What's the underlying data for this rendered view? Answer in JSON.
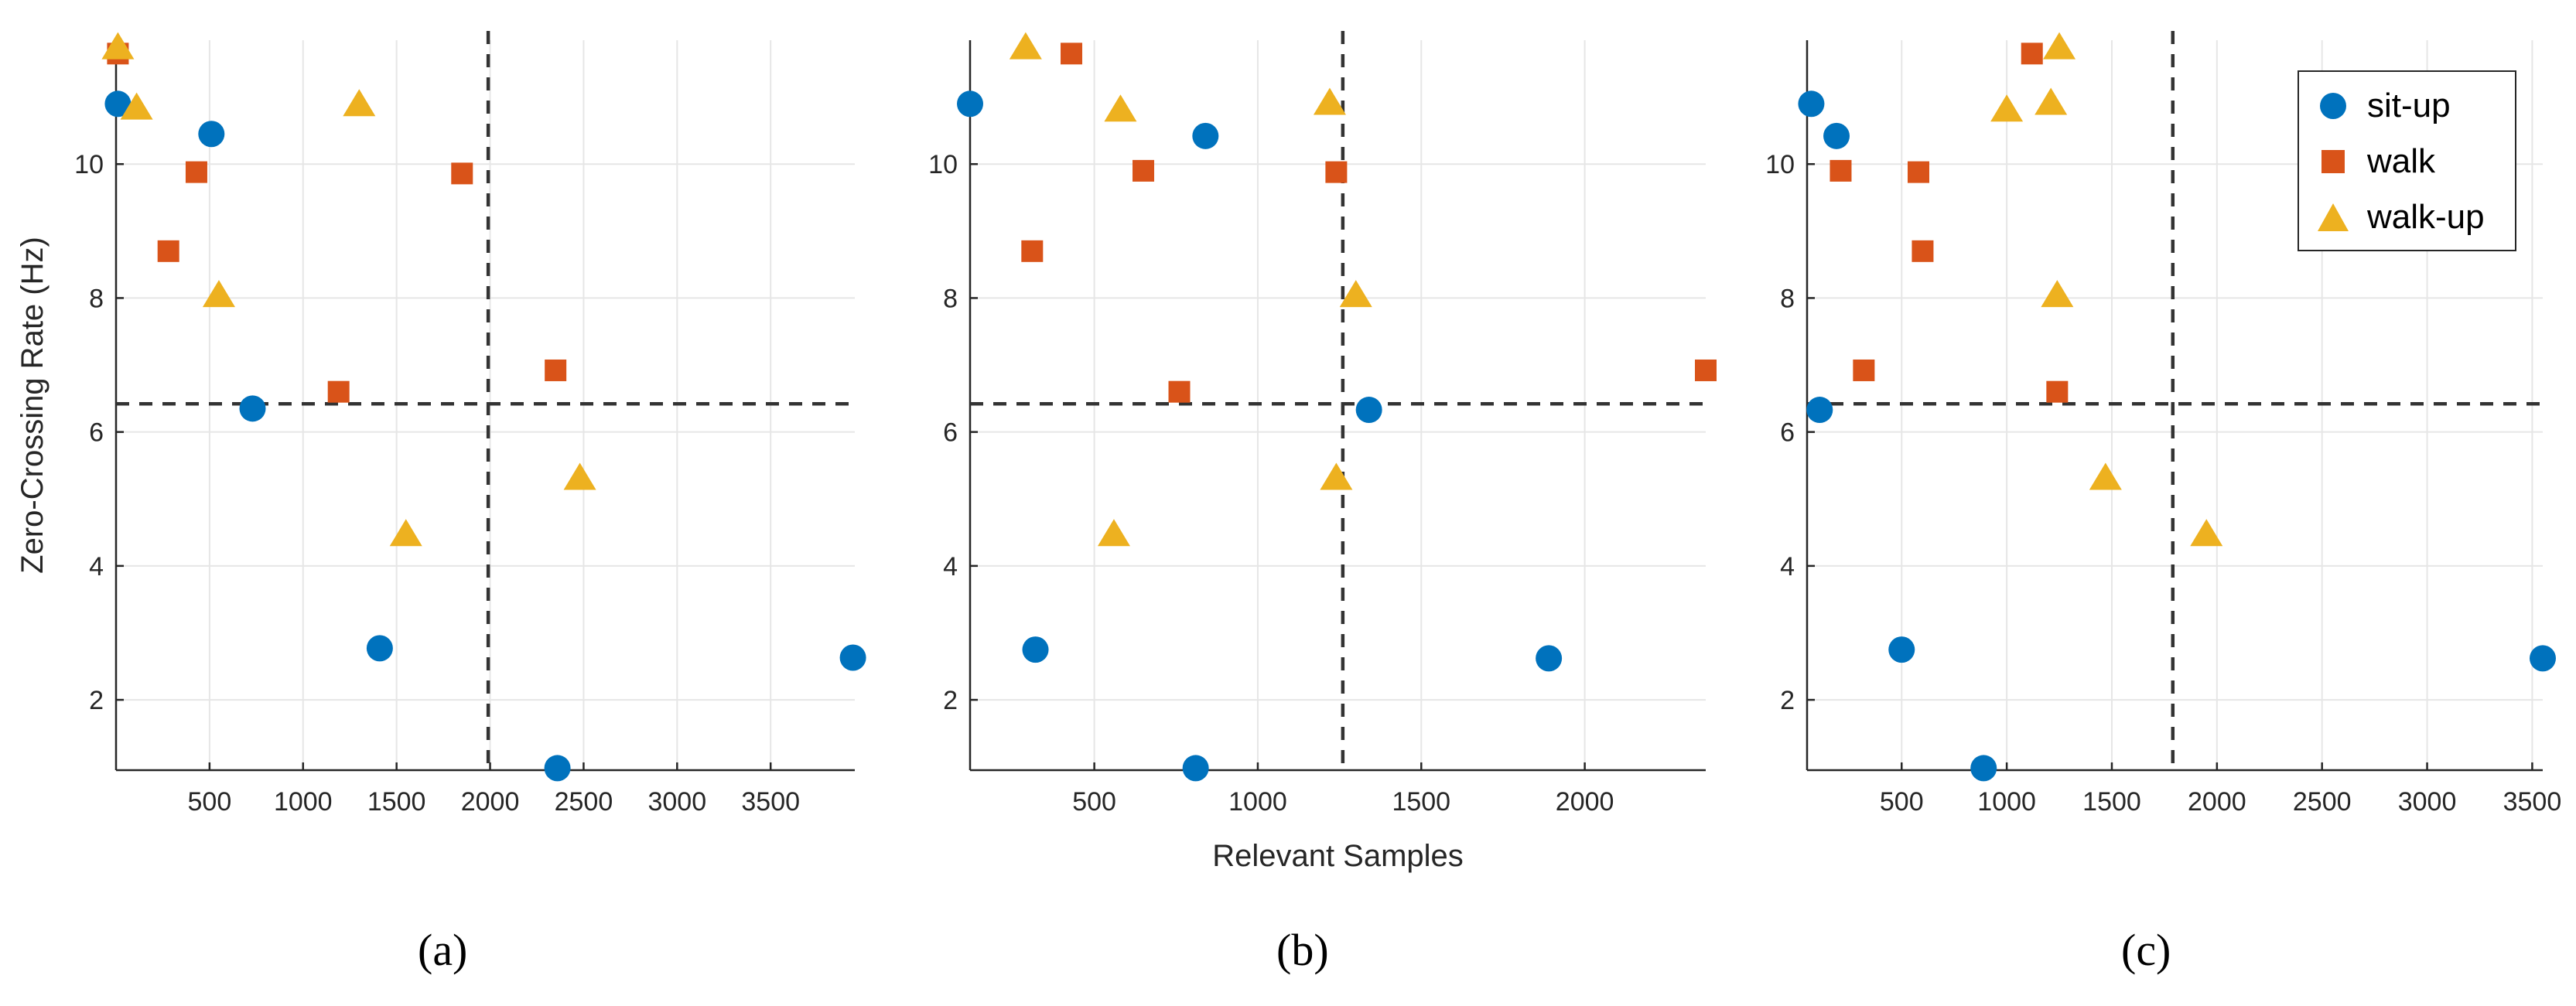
{
  "figure": {
    "legend": [
      {
        "name": "sit-up",
        "color": "#0072BD",
        "marker": "circle"
      },
      {
        "name": "walk",
        "color": "#D95319",
        "marker": "square"
      },
      {
        "name": "walk-up",
        "color": "#EDB120",
        "marker": "triangle"
      }
    ],
    "panel_labels": [
      "(a)",
      "(b)",
      "(c)"
    ]
  },
  "chart_data": [
    {
      "type": "scatter",
      "panel": "(a)",
      "xlabel": "",
      "ylabel": "Zero-Crossing Rate (Hz)",
      "xlim": [
        0,
        3950
      ],
      "ylim": [
        0.95,
        11.85
      ],
      "xticks": [
        500,
        1000,
        1500,
        2000,
        2500,
        3000,
        3500
      ],
      "yticks": [
        2,
        4,
        6,
        8,
        10
      ],
      "threshold_x": 1990,
      "threshold_y": 6.42,
      "grid": true,
      "series": [
        {
          "name": "sit-up",
          "points": [
            [
              10,
              10.9
            ],
            [
              510,
              10.45
            ],
            [
              730,
              6.35
            ],
            [
              1410,
              2.77
            ],
            [
              2360,
              0.98
            ],
            [
              3940,
              2.63
            ]
          ]
        },
        {
          "name": "walk",
          "points": [
            [
              10,
              11.65
            ],
            [
              280,
              8.7
            ],
            [
              430,
              9.88
            ],
            [
              1190,
              6.6
            ],
            [
              1850,
              9.86
            ],
            [
              2350,
              6.92
            ]
          ]
        },
        {
          "name": "walk-up",
          "points": [
            [
              10,
              11.75
            ],
            [
              110,
              10.85
            ],
            [
              550,
              8.05
            ],
            [
              1300,
              10.9
            ],
            [
              1550,
              4.48
            ],
            [
              2480,
              5.32
            ]
          ]
        }
      ]
    },
    {
      "type": "scatter",
      "panel": "(b)",
      "xlabel": "Relevant Samples",
      "ylabel": "",
      "xlim": [
        120,
        2370
      ],
      "ylim": [
        0.95,
        11.85
      ],
      "xticks": [
        500,
        1000,
        1500,
        2000
      ],
      "yticks": [
        2,
        4,
        6,
        8,
        10
      ],
      "threshold_x": 1260,
      "threshold_y": 6.42,
      "grid": true,
      "series": [
        {
          "name": "sit-up",
          "points": [
            [
              120,
              10.9
            ],
            [
              320,
              2.75
            ],
            [
              810,
              0.98
            ],
            [
              840,
              10.42
            ],
            [
              1340,
              6.33
            ],
            [
              1890,
              2.62
            ]
          ]
        },
        {
          "name": "walk",
          "points": [
            [
              310,
              8.7
            ],
            [
              430,
              11.65
            ],
            [
              650,
              9.9
            ],
            [
              760,
              6.6
            ],
            [
              1240,
              9.88
            ],
            [
              2370,
              6.92
            ]
          ]
        },
        {
          "name": "walk-up",
          "points": [
            [
              290,
              11.75
            ],
            [
              560,
              4.48
            ],
            [
              580,
              10.82
            ],
            [
              1220,
              10.92
            ],
            [
              1240,
              5.32
            ],
            [
              1300,
              8.05
            ]
          ]
        }
      ]
    },
    {
      "type": "scatter",
      "panel": "(c)",
      "xlabel": "",
      "ylabel": "",
      "xlim": [
        50,
        3550
      ],
      "ylim": [
        0.95,
        11.85
      ],
      "xticks": [
        500,
        1000,
        1500,
        2000,
        2500,
        3000,
        3500
      ],
      "yticks": [
        2,
        4,
        6,
        8,
        10
      ],
      "threshold_x": 1790,
      "threshold_y": 6.42,
      "grid": true,
      "series": [
        {
          "name": "sit-up",
          "points": [
            [
              70,
              10.9
            ],
            [
              110,
              6.33
            ],
            [
              190,
              10.42
            ],
            [
              500,
              2.75
            ],
            [
              890,
              0.98
            ],
            [
              3550,
              2.62
            ]
          ]
        },
        {
          "name": "walk",
          "points": [
            [
              210,
              9.9
            ],
            [
              320,
              6.92
            ],
            [
              580,
              9.88
            ],
            [
              600,
              8.7
            ],
            [
              1120,
              11.65
            ],
            [
              1240,
              6.6
            ]
          ]
        },
        {
          "name": "walk-up",
          "points": [
            [
              1000,
              10.82
            ],
            [
              1210,
              10.92
            ],
            [
              1240,
              8.05
            ],
            [
              1250,
              11.75
            ],
            [
              1470,
              5.32
            ],
            [
              1950,
              4.48
            ]
          ]
        }
      ]
    }
  ]
}
